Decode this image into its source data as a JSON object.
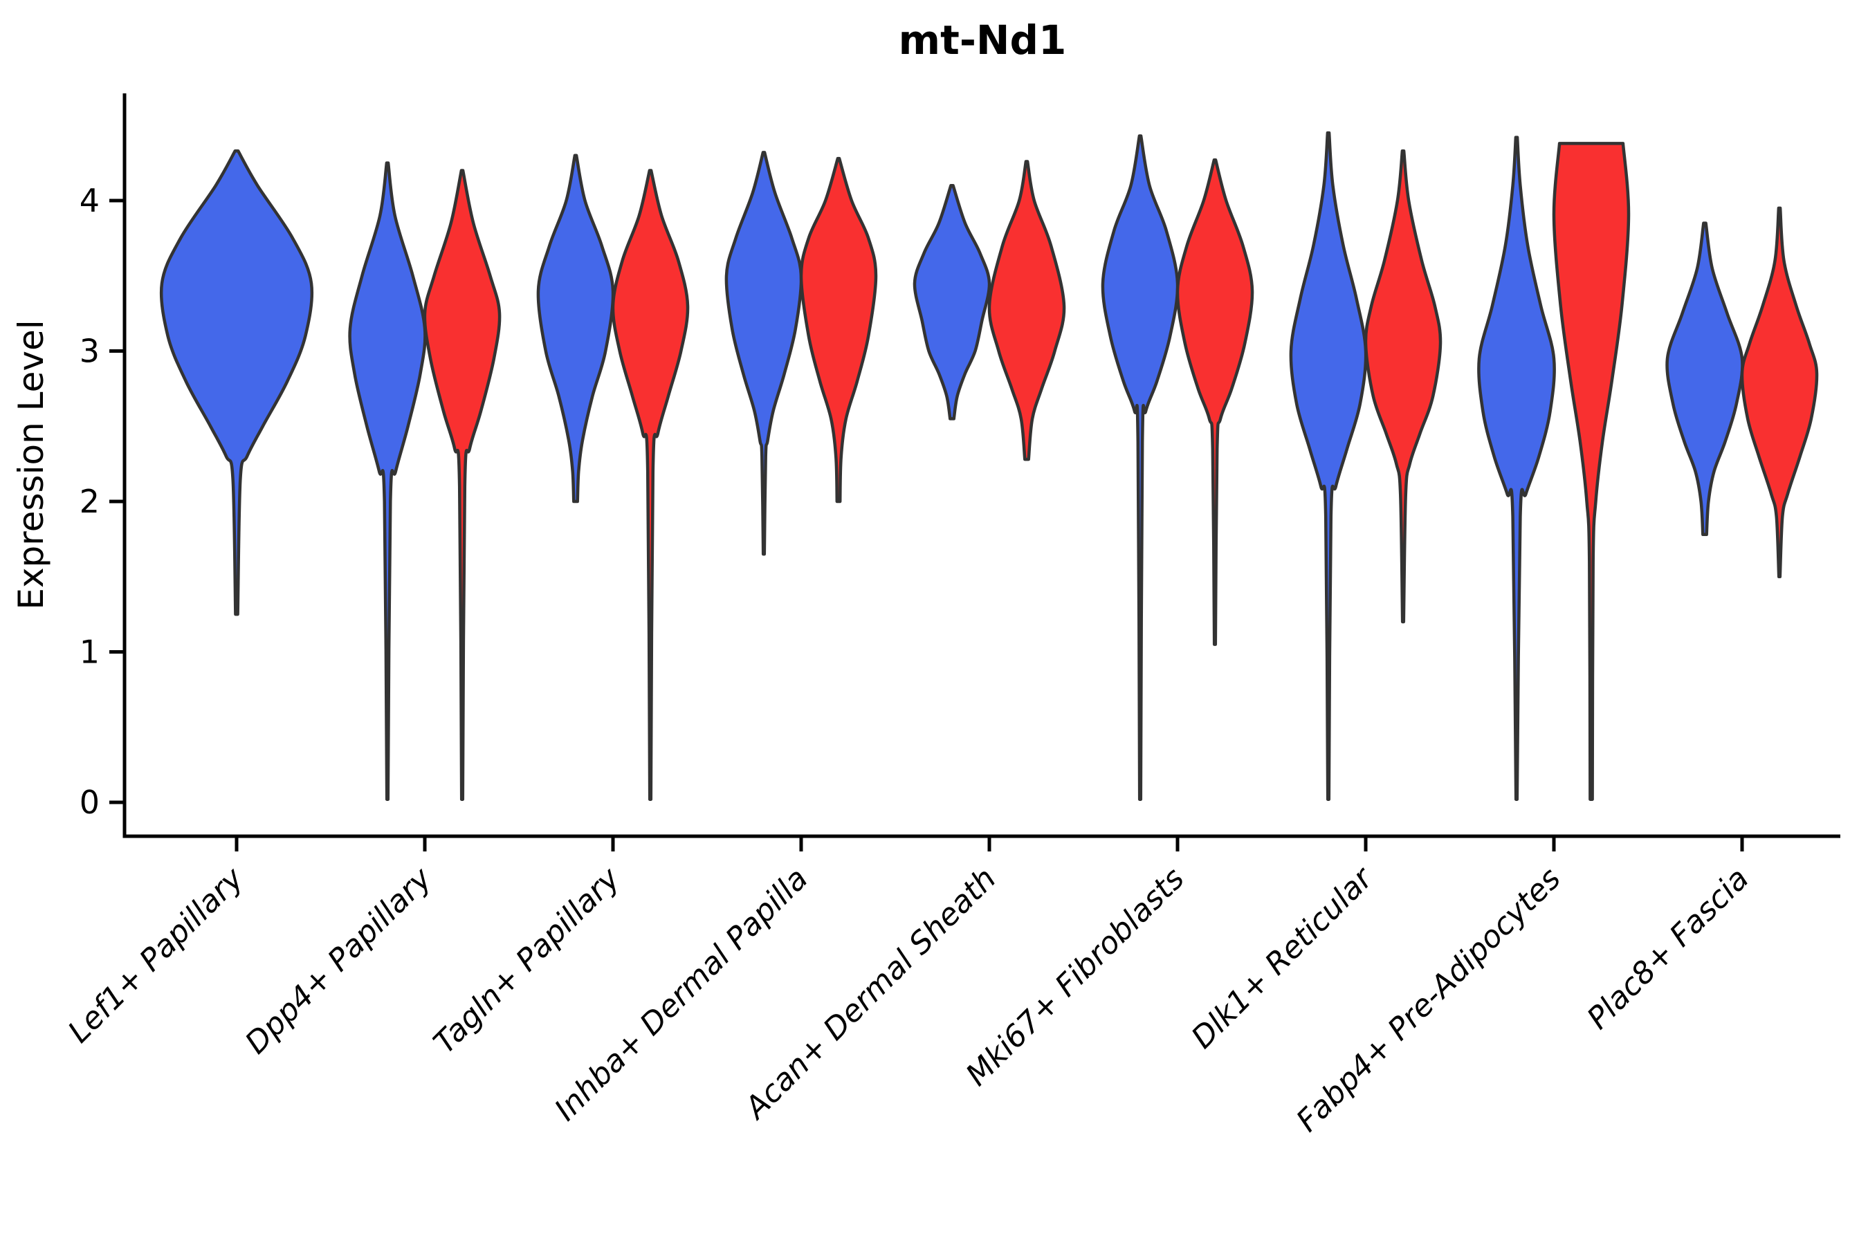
{
  "title": "mt-Nd1",
  "ylabel": "Expression Level",
  "colors": {
    "blue": "#4468EA",
    "red": "#F93030",
    "violin_stroke": "#333333",
    "axis": "#000000",
    "text": "#000000",
    "background": "#ffffff"
  },
  "chart_data": {
    "type": "violin",
    "title": "mt-Nd1",
    "xlabel": "",
    "ylabel": "Expression Level",
    "ylim": [
      -0.23,
      4.71
    ],
    "yticks": [
      0,
      1,
      2,
      3,
      4
    ],
    "grid": false,
    "legend": "none",
    "groups": [
      "blue",
      "red"
    ],
    "categories": [
      "Lef1+ Papillary",
      "Dpp4+ Papillary",
      "Tagln+ Papillary",
      "Inhba+ Dermal Papilla",
      "Acan+ Dermal Sheath",
      "Mki67+ Fibroblasts",
      "Dlk1+ Reticular",
      "Fabp4+ Pre-Adipocytes",
      "Plac8+ Fascia"
    ],
    "violins": [
      {
        "category_index": 0,
        "group": "blue",
        "single": true,
        "flat_top": false,
        "min": 1.25,
        "peak": 3.45,
        "max": 4.33,
        "profile": [
          [
            4.33,
            0.02
          ],
          [
            4.1,
            0.28
          ],
          [
            3.75,
            0.75
          ],
          [
            3.45,
            1.0
          ],
          [
            3.1,
            0.92
          ],
          [
            2.8,
            0.68
          ],
          [
            2.5,
            0.35
          ],
          [
            2.3,
            0.14
          ],
          [
            2.15,
            0.05
          ],
          [
            1.25,
            0.015
          ]
        ]
      },
      {
        "category_index": 1,
        "group": "blue",
        "single": false,
        "flat_top": false,
        "min": 0.0,
        "peak": 3.15,
        "max": 4.25,
        "profile": [
          [
            4.25,
            0.02
          ],
          [
            3.9,
            0.2
          ],
          [
            3.5,
            0.68
          ],
          [
            3.15,
            1.0
          ],
          [
            2.85,
            0.88
          ],
          [
            2.5,
            0.55
          ],
          [
            2.2,
            0.22
          ],
          [
            2.0,
            0.08
          ],
          [
            0.02,
            0.013
          ]
        ]
      },
      {
        "category_index": 1,
        "group": "red",
        "single": false,
        "flat_top": false,
        "min": 0.0,
        "peak": 3.25,
        "max": 4.2,
        "profile": [
          [
            4.2,
            0.02
          ],
          [
            3.85,
            0.3
          ],
          [
            3.5,
            0.75
          ],
          [
            3.25,
            1.0
          ],
          [
            2.95,
            0.85
          ],
          [
            2.6,
            0.5
          ],
          [
            2.35,
            0.2
          ],
          [
            2.1,
            0.07
          ],
          [
            0.02,
            0.013
          ]
        ]
      },
      {
        "category_index": 2,
        "group": "blue",
        "single": false,
        "flat_top": false,
        "min": 2.0,
        "peak": 3.4,
        "max": 4.3,
        "profile": [
          [
            4.3,
            0.02
          ],
          [
            4.0,
            0.25
          ],
          [
            3.7,
            0.7
          ],
          [
            3.4,
            1.0
          ],
          [
            3.0,
            0.8
          ],
          [
            2.7,
            0.45
          ],
          [
            2.4,
            0.18
          ],
          [
            2.2,
            0.08
          ],
          [
            2.0,
            0.05
          ]
        ]
      },
      {
        "category_index": 2,
        "group": "red",
        "single": false,
        "flat_top": false,
        "min": 0.0,
        "peak": 3.3,
        "max": 4.2,
        "profile": [
          [
            4.2,
            0.02
          ],
          [
            3.9,
            0.3
          ],
          [
            3.6,
            0.75
          ],
          [
            3.3,
            1.0
          ],
          [
            3.0,
            0.82
          ],
          [
            2.7,
            0.48
          ],
          [
            2.45,
            0.2
          ],
          [
            2.2,
            0.07
          ],
          [
            0.02,
            0.013
          ]
        ]
      },
      {
        "category_index": 3,
        "group": "blue",
        "single": false,
        "flat_top": false,
        "min": 1.65,
        "peak": 3.5,
        "max": 4.32,
        "profile": [
          [
            4.32,
            0.02
          ],
          [
            4.05,
            0.3
          ],
          [
            3.75,
            0.75
          ],
          [
            3.5,
            1.0
          ],
          [
            3.15,
            0.85
          ],
          [
            2.85,
            0.55
          ],
          [
            2.6,
            0.25
          ],
          [
            2.4,
            0.1
          ],
          [
            2.3,
            0.05
          ],
          [
            1.65,
            0.015
          ]
        ]
      },
      {
        "category_index": 3,
        "group": "red",
        "single": false,
        "flat_top": false,
        "min": 2.0,
        "peak": 3.5,
        "max": 4.28,
        "profile": [
          [
            4.28,
            0.02
          ],
          [
            4.0,
            0.35
          ],
          [
            3.75,
            0.8
          ],
          [
            3.5,
            1.0
          ],
          [
            3.1,
            0.8
          ],
          [
            2.8,
            0.5
          ],
          [
            2.55,
            0.2
          ],
          [
            2.3,
            0.07
          ],
          [
            2.0,
            0.04
          ]
        ]
      },
      {
        "category_index": 4,
        "group": "blue",
        "single": false,
        "flat_top": false,
        "min": 2.55,
        "peak": 3.45,
        "max": 4.1,
        "profile": [
          [
            4.1,
            0.03
          ],
          [
            3.85,
            0.35
          ],
          [
            3.65,
            0.75
          ],
          [
            3.45,
            1.0
          ],
          [
            3.2,
            0.8
          ],
          [
            3.0,
            0.62
          ],
          [
            2.85,
            0.35
          ],
          [
            2.7,
            0.14
          ],
          [
            2.55,
            0.05
          ]
        ]
      },
      {
        "category_index": 4,
        "group": "red",
        "single": false,
        "flat_top": false,
        "min": 2.28,
        "peak": 3.3,
        "max": 4.26,
        "profile": [
          [
            4.26,
            0.02
          ],
          [
            4.0,
            0.2
          ],
          [
            3.7,
            0.65
          ],
          [
            3.3,
            1.0
          ],
          [
            3.0,
            0.75
          ],
          [
            2.75,
            0.4
          ],
          [
            2.55,
            0.15
          ],
          [
            2.28,
            0.05
          ]
        ]
      },
      {
        "category_index": 5,
        "group": "blue",
        "single": false,
        "flat_top": false,
        "min": 0.0,
        "peak": 3.45,
        "max": 4.43,
        "profile": [
          [
            4.43,
            0.02
          ],
          [
            4.1,
            0.25
          ],
          [
            3.8,
            0.7
          ],
          [
            3.45,
            1.0
          ],
          [
            3.1,
            0.8
          ],
          [
            2.8,
            0.45
          ],
          [
            2.6,
            0.15
          ],
          [
            2.4,
            0.06
          ],
          [
            0.02,
            0.013
          ]
        ]
      },
      {
        "category_index": 5,
        "group": "red",
        "single": false,
        "flat_top": false,
        "min": 1.05,
        "peak": 3.4,
        "max": 4.27,
        "profile": [
          [
            4.27,
            0.02
          ],
          [
            4.0,
            0.3
          ],
          [
            3.7,
            0.75
          ],
          [
            3.4,
            1.0
          ],
          [
            3.05,
            0.8
          ],
          [
            2.75,
            0.45
          ],
          [
            2.55,
            0.15
          ],
          [
            2.35,
            0.06
          ],
          [
            1.05,
            0.015
          ]
        ]
      },
      {
        "category_index": 6,
        "group": "blue",
        "single": false,
        "flat_top": false,
        "min": 0.0,
        "peak": 3.0,
        "max": 4.45,
        "profile": [
          [
            4.45,
            0.02
          ],
          [
            4.1,
            0.12
          ],
          [
            3.7,
            0.4
          ],
          [
            3.35,
            0.75
          ],
          [
            3.0,
            1.0
          ],
          [
            2.65,
            0.85
          ],
          [
            2.35,
            0.5
          ],
          [
            2.1,
            0.2
          ],
          [
            1.9,
            0.07
          ],
          [
            0.02,
            0.013
          ]
        ]
      },
      {
        "category_index": 6,
        "group": "red",
        "single": false,
        "flat_top": false,
        "min": 1.2,
        "peak": 3.05,
        "max": 4.33,
        "profile": [
          [
            4.33,
            0.02
          ],
          [
            4.0,
            0.15
          ],
          [
            3.6,
            0.5
          ],
          [
            3.3,
            0.85
          ],
          [
            3.05,
            1.0
          ],
          [
            2.7,
            0.8
          ],
          [
            2.45,
            0.45
          ],
          [
            2.25,
            0.18
          ],
          [
            2.05,
            0.07
          ],
          [
            1.2,
            0.015
          ]
        ]
      },
      {
        "category_index": 7,
        "group": "blue",
        "single": false,
        "flat_top": false,
        "min": 0.0,
        "peak": 2.95,
        "max": 4.42,
        "profile": [
          [
            4.42,
            0.02
          ],
          [
            4.1,
            0.1
          ],
          [
            3.7,
            0.3
          ],
          [
            3.3,
            0.65
          ],
          [
            2.95,
            1.0
          ],
          [
            2.6,
            0.9
          ],
          [
            2.3,
            0.6
          ],
          [
            2.05,
            0.25
          ],
          [
            1.9,
            0.1
          ],
          [
            0.02,
            0.013
          ]
        ]
      },
      {
        "category_index": 7,
        "group": "red",
        "single": false,
        "flat_top": true,
        "min": 0.0,
        "peak": 3.9,
        "max": 4.38,
        "profile": [
          [
            4.38,
            0.85
          ],
          [
            3.9,
            1.0
          ],
          [
            3.3,
            0.82
          ],
          [
            2.8,
            0.55
          ],
          [
            2.4,
            0.3
          ],
          [
            2.0,
            0.12
          ],
          [
            1.6,
            0.05
          ],
          [
            0.02,
            0.03
          ]
        ]
      },
      {
        "category_index": 8,
        "group": "blue",
        "single": false,
        "flat_top": false,
        "min": 1.78,
        "peak": 2.95,
        "max": 3.85,
        "profile": [
          [
            3.85,
            0.03
          ],
          [
            3.55,
            0.2
          ],
          [
            3.25,
            0.6
          ],
          [
            2.95,
            1.0
          ],
          [
            2.65,
            0.85
          ],
          [
            2.4,
            0.55
          ],
          [
            2.2,
            0.25
          ],
          [
            2.0,
            0.1
          ],
          [
            1.78,
            0.05
          ]
        ]
      },
      {
        "category_index": 8,
        "group": "red",
        "single": false,
        "flat_top": false,
        "min": 1.5,
        "peak": 2.85,
        "max": 3.95,
        "profile": [
          [
            3.95,
            0.02
          ],
          [
            3.6,
            0.12
          ],
          [
            3.3,
            0.45
          ],
          [
            3.05,
            0.8
          ],
          [
            2.85,
            1.0
          ],
          [
            2.55,
            0.85
          ],
          [
            2.3,
            0.55
          ],
          [
            2.05,
            0.22
          ],
          [
            1.9,
            0.08
          ],
          [
            1.5,
            0.015
          ]
        ]
      }
    ]
  }
}
